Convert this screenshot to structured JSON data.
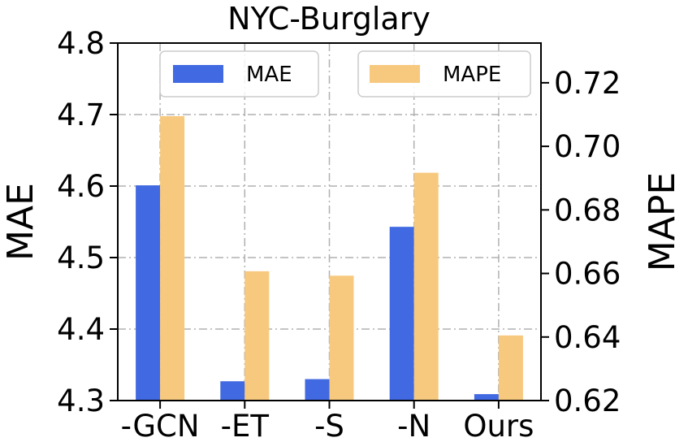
{
  "chart_data": {
    "type": "bar",
    "title": "NYC-Burglary",
    "categories": [
      "-GCN",
      "-ET",
      "-S",
      "-N",
      "Ours"
    ],
    "series": [
      {
        "name": "MAE",
        "axis": "left",
        "color": "#4169e1",
        "values": [
          4.601,
          4.327,
          4.33,
          4.543,
          4.309
        ]
      },
      {
        "name": "MAPE",
        "axis": "right",
        "color": "#f7c97e",
        "values": [
          0.7095,
          0.6607,
          0.6593,
          0.6917,
          0.6405
        ]
      }
    ],
    "ylabel_left": "MAE",
    "ylabel_right": "MAPE",
    "ylim_left": [
      4.3,
      4.8
    ],
    "ylim_right": [
      0.62,
      0.7325
    ],
    "yticks_left": [
      "4.3",
      "4.4",
      "4.5",
      "4.6",
      "4.7",
      "4.8"
    ],
    "yticks_right": [
      "0.62",
      "0.64",
      "0.66",
      "0.68",
      "0.70",
      "0.72"
    ],
    "grid": true,
    "legend_placement": "top"
  }
}
